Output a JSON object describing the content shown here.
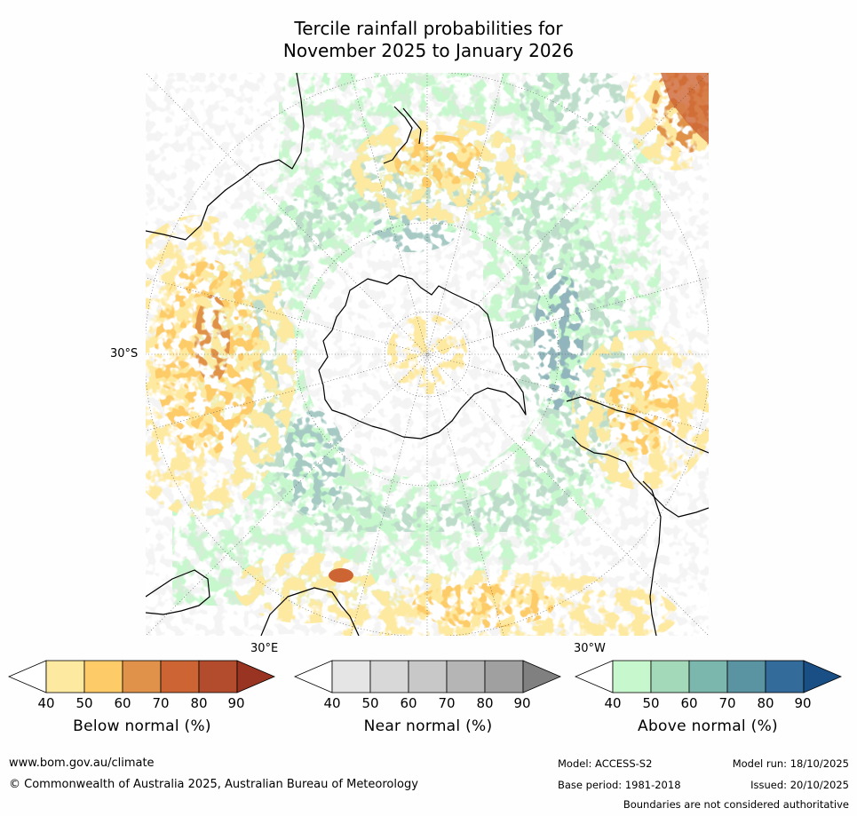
{
  "title_line1": "Tercile rainfall probabilities for",
  "title_line2": "November 2025 to January 2026",
  "map": {
    "lat_label": "30°S",
    "lon_label_left": "30°E",
    "lon_label_right": "30°W"
  },
  "colorbars": [
    {
      "label": "Below normal (%)",
      "ticks": [
        "40",
        "50",
        "60",
        "70",
        "80",
        "90"
      ],
      "colors": [
        "#ffffff",
        "#fee9a0",
        "#fdcb67",
        "#e0924a",
        "#cd6433",
        "#b34c2c",
        "#9a3422"
      ]
    },
    {
      "label": "Near normal (%)",
      "ticks": [
        "40",
        "50",
        "60",
        "70",
        "80",
        "90"
      ],
      "colors": [
        "#ffffff",
        "#e5e5e5",
        "#d8d8d8",
        "#c8c8c8",
        "#b5b5b5",
        "#a0a0a0",
        "#808080"
      ]
    },
    {
      "label": "Above normal (%)",
      "ticks": [
        "40",
        "50",
        "60",
        "70",
        "80",
        "90"
      ],
      "colors": [
        "#ffffff",
        "#c7f7cc",
        "#a3d9b9",
        "#7cb7ae",
        "#5a93a2",
        "#336b9a",
        "#1a4f86"
      ]
    }
  ],
  "footer": {
    "url": "www.bom.gov.au/climate",
    "copyright": "© Commonwealth of Australia 2025, Australian Bureau of Meteorology",
    "model": "Model: ACCESS-S2",
    "base_period": "Base period: 1981-2018",
    "model_run": "Model run: 18/10/2025",
    "issued": "Issued: 20/10/2025",
    "disclaimer": "Boundaries are not considered authoritative"
  }
}
